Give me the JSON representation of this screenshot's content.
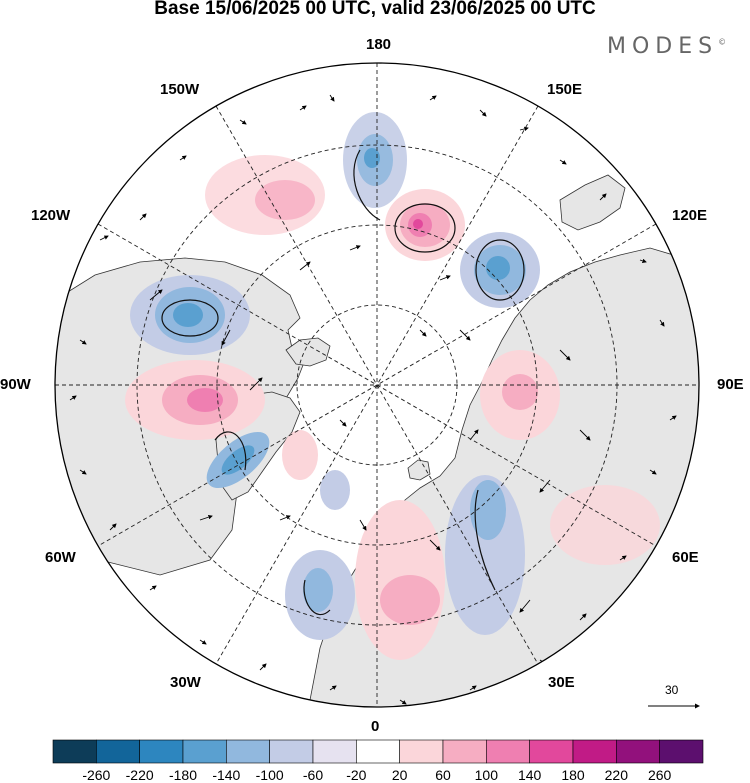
{
  "title": "Base 15/06/2025 00 UTC, valid 23/06/2025 00 UTC",
  "brand": {
    "text": "MODES",
    "mark": "©"
  },
  "map": {
    "projection": "north polar stereographic",
    "longitude_labels": {
      "top": "180",
      "bottom": "0",
      "left": "90W",
      "right": "90E",
      "upper_left": "150W",
      "upper_right": "150E",
      "mid_left_upper": "120W",
      "mid_right_upper": "120E",
      "mid_left_lower": "60W",
      "mid_right_lower": "60E",
      "lower_left": "30W",
      "lower_right": "30E"
    },
    "reference_vector": "30",
    "colors": {
      "land": "#e6e6e6",
      "ocean": "#ffffff",
      "coast": "#333333",
      "grid": "#222222"
    }
  },
  "colorbar": {
    "labels": [
      "-260",
      "-220",
      "-180",
      "-140",
      "-100",
      "-60",
      "-20",
      "20",
      "60",
      "100",
      "140",
      "180",
      "220",
      "260"
    ],
    "colors": [
      "#0d3c58",
      "#12659a",
      "#2d86bf",
      "#5aa0d0",
      "#91b8de",
      "#c3cce6",
      "#e6e2f0",
      "#ffffff",
      "#fbd6da",
      "#f6adc2",
      "#ef7fb1",
      "#e2489c",
      "#c11b86",
      "#92117c",
      "#5c0f6e"
    ]
  }
}
